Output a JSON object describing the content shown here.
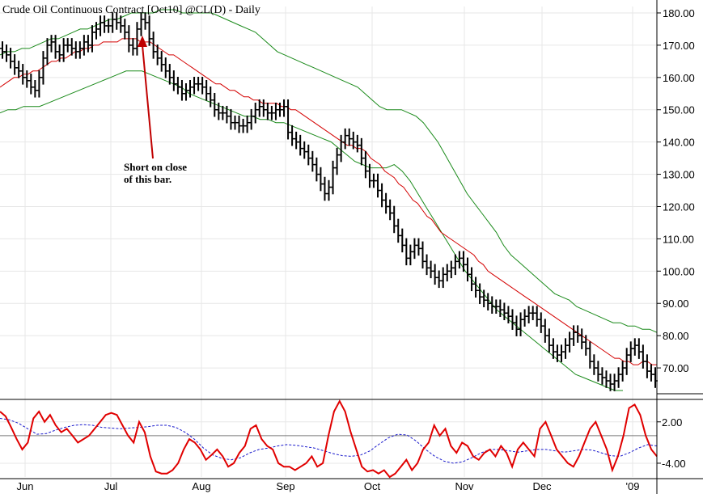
{
  "chart_data": [
    {
      "type": "line",
      "chart_style": "ohlc-bars",
      "title": "Crude Oil Continuous Contract [Oct10]  @CL(D) - Daily",
      "annotation": {
        "text_line1": "Short on close",
        "text_line2": "of this bar."
      },
      "ylim": [
        62,
        182
      ],
      "y_ticks": [
        70,
        80,
        90,
        100,
        110,
        120,
        130,
        140,
        150,
        160,
        170,
        180
      ],
      "y_tick_labels": [
        "70.00",
        "80.00",
        "90.00",
        "100.00",
        "110.00",
        "120.00",
        "130.00",
        "140.00",
        "150.00",
        "160.00",
        "170.00",
        "180.00"
      ],
      "x_tick_labels": [
        "Jun",
        "Jul",
        "Aug",
        "Sep",
        "Oct",
        "Nov",
        "Dec",
        "'09"
      ],
      "grid": true,
      "axis_position": "right",
      "series": [
        {
          "role": "price-bars",
          "color": "#000000",
          "approx_closes": [
            168,
            167,
            165,
            163,
            162,
            160,
            159,
            157,
            156,
            160,
            166,
            170,
            171,
            168,
            167,
            170,
            170,
            169,
            168,
            169,
            171,
            170,
            174,
            175,
            177,
            176,
            176,
            178,
            177,
            176,
            174,
            170,
            169,
            175,
            178,
            177,
            172,
            168,
            166,
            164,
            162,
            160,
            158,
            157,
            155,
            156,
            157,
            158,
            158,
            157,
            155,
            153,
            150,
            149,
            149,
            148,
            146,
            146,
            145,
            145,
            146,
            148,
            150,
            151,
            150,
            149,
            149,
            150,
            150,
            151,
            143,
            141,
            140,
            138,
            137,
            135,
            133,
            130,
            127,
            124,
            126,
            132,
            136,
            140,
            142,
            141,
            140,
            139,
            135,
            131,
            128,
            128,
            125,
            122,
            120,
            118,
            114,
            111,
            108,
            104,
            106,
            108,
            107,
            103,
            101,
            100,
            98,
            97,
            99,
            100,
            101,
            103,
            104,
            102,
            99,
            96,
            94,
            92,
            91,
            90,
            89,
            89,
            88,
            87,
            86,
            84,
            82,
            85,
            86,
            87,
            87,
            85,
            83,
            80,
            77,
            75,
            74,
            75,
            77,
            79,
            81,
            80,
            78,
            76,
            72,
            70,
            68,
            67,
            66,
            65,
            66,
            68,
            70,
            74,
            76,
            77,
            75,
            72,
            69,
            68,
            66
          ]
        },
        {
          "role": "moving-average",
          "color": "#d40000",
          "approx_values": [
            157,
            158,
            159,
            160,
            160,
            161,
            161,
            162,
            162,
            163,
            164,
            165,
            165,
            166,
            166,
            167,
            168,
            168,
            169,
            169,
            170,
            170,
            171,
            171,
            171,
            171,
            172,
            172,
            172,
            172,
            171,
            171,
            171,
            170,
            169,
            168,
            167,
            167,
            166,
            165,
            164,
            163,
            162,
            161,
            160,
            159,
            158,
            158,
            157,
            156,
            156,
            155,
            154,
            154,
            153,
            153,
            152,
            152,
            152,
            152,
            151,
            151,
            150,
            150,
            149,
            148,
            147,
            146,
            145,
            144,
            143,
            142,
            141,
            140,
            139,
            139,
            138,
            138,
            137,
            135,
            134,
            133,
            131,
            130,
            129,
            127,
            126,
            124,
            122,
            121,
            119,
            117,
            116,
            114,
            112,
            111,
            110,
            109,
            108,
            107,
            106,
            105,
            103,
            102,
            100,
            99,
            98,
            97,
            96,
            95,
            94,
            93,
            92,
            91,
            90,
            89,
            88,
            87,
            86,
            85,
            84,
            83,
            82,
            81,
            80,
            79,
            78,
            77,
            76,
            75,
            74,
            73,
            73,
            72,
            72,
            71,
            71,
            72,
            72,
            71,
            71
          ]
        },
        {
          "role": "upper-band",
          "color": "#1a8a1a",
          "approx_values": [
            167,
            168,
            168,
            169,
            169,
            170,
            171,
            172,
            172,
            173,
            174,
            175,
            175,
            176,
            177,
            178,
            178,
            179,
            180,
            180,
            180,
            180,
            181,
            181,
            181,
            180,
            180,
            180,
            180,
            180,
            179,
            178,
            177,
            176,
            175,
            174,
            172,
            170,
            168,
            167,
            166,
            165,
            164,
            163,
            162,
            161,
            160,
            159,
            158,
            157,
            155,
            153,
            151,
            150,
            150,
            150,
            149,
            148,
            146,
            143,
            140,
            136,
            132,
            128,
            124,
            121,
            118,
            115,
            112,
            108,
            105,
            103,
            101,
            99,
            97,
            95,
            93,
            92,
            91,
            89,
            88,
            87,
            86,
            85,
            84,
            84,
            83,
            83,
            82,
            82,
            81
          ]
        },
        {
          "role": "lower-band",
          "color": "#1a8a1a",
          "approx_values": [
            149,
            150,
            150,
            151,
            151,
            151,
            152,
            153,
            154,
            155,
            156,
            157,
            158,
            159,
            160,
            161,
            162,
            162,
            162,
            161,
            160,
            159,
            158,
            157,
            155,
            154,
            153,
            152,
            151,
            150,
            149,
            148,
            148,
            147,
            147,
            146,
            146,
            145,
            144,
            143,
            142,
            141,
            140,
            138,
            136,
            134,
            133,
            132,
            132,
            132,
            133,
            131,
            128,
            124,
            120,
            116,
            112,
            108,
            104,
            100,
            97,
            94,
            91,
            88,
            86,
            84,
            82,
            80,
            78,
            76,
            74,
            72,
            70,
            68,
            67,
            66,
            65,
            64,
            63,
            63
          ]
        }
      ]
    },
    {
      "type": "line",
      "role": "oscillator-panel",
      "y_ticks": [
        2.0,
        -4.0
      ],
      "y_tick_labels": [
        "2.00",
        "-4.00"
      ],
      "ylim": [
        -6,
        4.2
      ],
      "x_tick_labels": [
        "Jun",
        "Jul",
        "Aug",
        "Sep",
        "Oct",
        "Nov",
        "Dec",
        "'09"
      ],
      "series": [
        {
          "role": "oscillator",
          "color": "#e00000",
          "approx_values": [
            3.5,
            2.8,
            1.2,
            -0.5,
            -2.0,
            -1.0,
            2.5,
            3.5,
            2.0,
            3.0,
            1.5,
            0.5,
            1.0,
            0.0,
            -1.0,
            -0.5,
            0.0,
            1.0,
            2.0,
            3.0,
            3.3,
            3.0,
            1.5,
            0.0,
            -1.0,
            2.0,
            0.5,
            -3.0,
            -5.2,
            -5.5,
            -5.5,
            -5.0,
            -4.0,
            -2.0,
            -0.5,
            -1.0,
            -2.0,
            -3.5,
            -2.8,
            -2.0,
            -3.0,
            -4.5,
            -4.0,
            -2.5,
            -1.5,
            1.0,
            1.5,
            -0.5,
            -1.5,
            -2.0,
            -4.0,
            -4.5,
            -4.5,
            -5.0,
            -4.5,
            -4.0,
            -3.0,
            -4.5,
            -4.0,
            0.0,
            3.5,
            5.0,
            3.5,
            0.5,
            -2.0,
            -4.5,
            -5.2,
            -5.0,
            -5.5,
            -5.0,
            -6.0,
            -5.5,
            -4.5,
            -3.5,
            -5.0,
            -4.0,
            -2.0,
            -1.0,
            1.5,
            0.0,
            1.0,
            -1.5,
            -2.5,
            -1.0,
            -1.5,
            -3.0,
            -3.5,
            -2.5,
            -2.0,
            -3.0,
            -1.5,
            -2.5,
            -4.5,
            -2.0,
            -1.0,
            -2.0,
            -3.0,
            1.0,
            2.0,
            0.0,
            -2.0,
            -3.0,
            -4.0,
            -4.5,
            -3.0,
            -1.0,
            1.0,
            2.0,
            0.0,
            -2.0,
            -5.0,
            -3.0,
            0.0,
            4.0,
            4.5,
            3.0,
            0.0,
            -2.0,
            -3.0
          ]
        },
        {
          "role": "signal",
          "color": "#1a1acc",
          "approx_values": [
            2.5,
            2.3,
            1.8,
            1.0,
            0.2,
            0.3,
            0.8,
            1.2,
            1.5,
            1.6,
            1.5,
            1.2,
            1.1,
            1.0,
            1.1,
            1.2,
            1.3,
            1.5,
            1.5,
            1.2,
            0.5,
            -0.5,
            -1.8,
            -2.8,
            -3.3,
            -3.5,
            -3.2,
            -2.5,
            -2.0,
            -1.8,
            -1.5,
            -1.3,
            -1.4,
            -1.6,
            -1.8,
            -2.2,
            -2.6,
            -2.9,
            -3.0,
            -2.8,
            -2.2,
            -1.2,
            -0.3,
            0.2,
            0.1,
            -0.8,
            -2.0,
            -3.0,
            -3.7,
            -4.0,
            -3.8,
            -3.2,
            -2.5,
            -2.0,
            -2.0,
            -2.2,
            -2.4,
            -2.2,
            -2.0,
            -2.0,
            -2.2,
            -2.4,
            -2.2,
            -2.0,
            -2.1,
            -2.5,
            -2.9,
            -3.0,
            -2.5,
            -1.8,
            -1.3,
            -1.5
          ]
        }
      ]
    }
  ]
}
